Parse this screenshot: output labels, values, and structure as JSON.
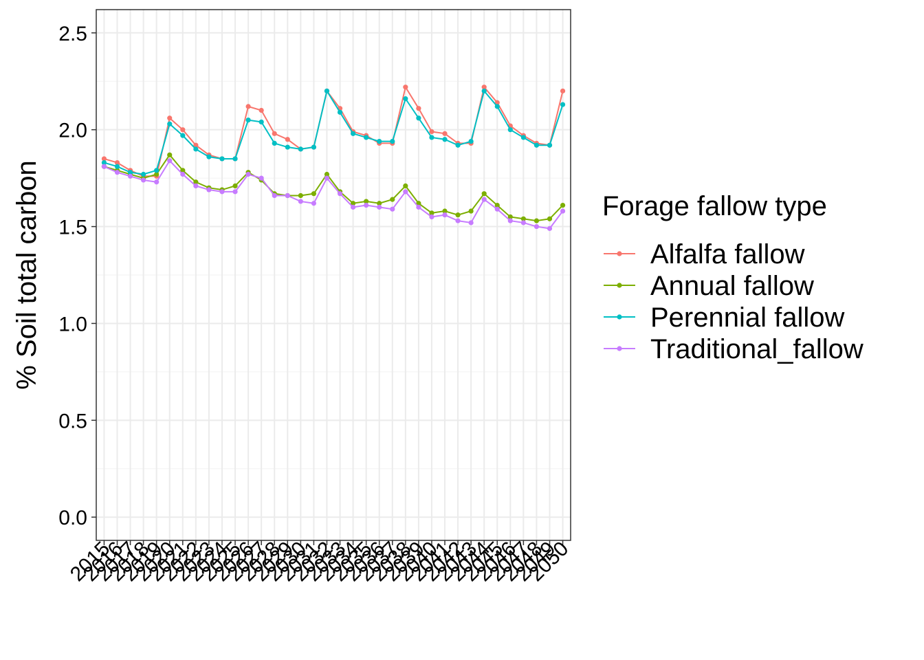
{
  "chart_data": {
    "type": "line",
    "title": "",
    "xlabel": "",
    "ylabel": "% Soil total carbon",
    "legend_title": "Forage fallow type",
    "legend_position": "right",
    "grid": true,
    "ylim": [
      -0.12,
      2.62
    ],
    "yticks": [
      0.0,
      0.5,
      1.0,
      1.5,
      2.0,
      2.5
    ],
    "ytick_labels": [
      "0.0",
      "0.5",
      "1.0",
      "1.5",
      "2.0",
      "2.5"
    ],
    "x": [
      2015,
      2016,
      2017,
      2018,
      2019,
      2020,
      2021,
      2022,
      2023,
      2024,
      2025,
      2026,
      2027,
      2028,
      2029,
      2030,
      2031,
      2032,
      2033,
      2034,
      2035,
      2036,
      2037,
      2038,
      2039,
      2040,
      2041,
      2042,
      2043,
      2044,
      2045,
      2046,
      2047,
      2048,
      2049,
      2050
    ],
    "series": [
      {
        "name": "Alfalfa fallow",
        "color": "#F8766D",
        "values": [
          1.85,
          1.83,
          1.79,
          1.76,
          1.76,
          2.06,
          2.0,
          1.92,
          1.87,
          1.85,
          1.85,
          2.12,
          2.1,
          1.98,
          1.95,
          1.9,
          1.91,
          2.2,
          2.11,
          1.99,
          1.97,
          1.93,
          1.93,
          2.22,
          2.11,
          1.99,
          1.98,
          1.93,
          1.93,
          2.22,
          2.14,
          2.02,
          1.97,
          1.93,
          1.92,
          2.2
        ]
      },
      {
        "name": "Annual fallow",
        "color": "#7CAE00",
        "values": [
          1.81,
          1.79,
          1.77,
          1.75,
          1.77,
          1.87,
          1.79,
          1.73,
          1.7,
          1.69,
          1.71,
          1.78,
          1.74,
          1.67,
          1.66,
          1.66,
          1.67,
          1.77,
          1.68,
          1.62,
          1.63,
          1.62,
          1.64,
          1.71,
          1.62,
          1.57,
          1.58,
          1.56,
          1.58,
          1.67,
          1.61,
          1.55,
          1.54,
          1.53,
          1.54,
          1.61
        ]
      },
      {
        "name": "Perennial fallow",
        "color": "#00BFC4",
        "values": [
          1.83,
          1.81,
          1.78,
          1.77,
          1.79,
          2.03,
          1.97,
          1.9,
          1.86,
          1.85,
          1.85,
          2.05,
          2.04,
          1.93,
          1.91,
          1.9,
          1.91,
          2.2,
          2.09,
          1.98,
          1.96,
          1.94,
          1.94,
          2.16,
          2.06,
          1.96,
          1.95,
          1.92,
          1.94,
          2.2,
          2.12,
          2.0,
          1.96,
          1.92,
          1.92,
          2.13
        ]
      },
      {
        "name": "Traditional_fallow",
        "color": "#C77CFF",
        "values": [
          1.81,
          1.78,
          1.76,
          1.74,
          1.73,
          1.84,
          1.77,
          1.71,
          1.69,
          1.68,
          1.68,
          1.77,
          1.75,
          1.66,
          1.66,
          1.63,
          1.62,
          1.75,
          1.67,
          1.6,
          1.61,
          1.6,
          1.59,
          1.68,
          1.6,
          1.55,
          1.56,
          1.53,
          1.52,
          1.64,
          1.59,
          1.53,
          1.52,
          1.5,
          1.49,
          1.58
        ]
      }
    ]
  }
}
